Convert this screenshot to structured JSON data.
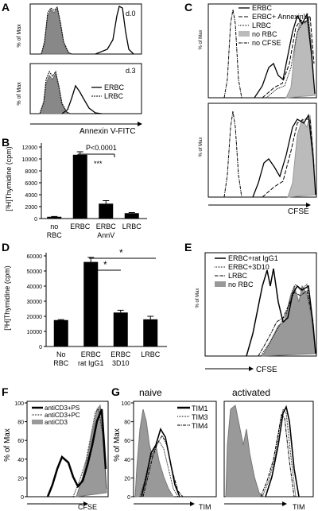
{
  "panels": {
    "A": {
      "letter": "A",
      "top_label": "d.0",
      "bottom_label": "d.3",
      "ylabel": "% of Max",
      "xlabel": "Annexin V-FITC",
      "legend": [
        "ERBC",
        "LRBC"
      ],
      "ticks_x": [
        "10⁰",
        "10¹",
        "10²",
        "10³",
        "10⁴"
      ],
      "ticks_y": [
        "0",
        "20",
        "40",
        "60",
        "80",
        "100"
      ]
    },
    "B": {
      "letter": "B",
      "ylabel": "[³H]Thymidine (cpm)",
      "pvalue": "P<0.0001",
      "stars": "***",
      "ticks_y": [
        "0",
        "2000",
        "4000",
        "6000",
        "8000",
        "10000",
        "12000"
      ],
      "chart_data": {
        "type": "bar",
        "categories": [
          "no RBC",
          "ERBC",
          "ERBC AnnV",
          "LRBC"
        ],
        "values": [
          300,
          10700,
          2500,
          900
        ],
        "errors": [
          50,
          500,
          500,
          100
        ],
        "ylim": [
          0,
          12000
        ]
      }
    },
    "C": {
      "letter": "C",
      "ylabel": "% of Max",
      "xlabel": "CFSE",
      "legend": [
        "ERBC",
        "ERBC+ AnnexinV",
        "LRBC",
        "no RBC",
        "no CFSE"
      ]
    },
    "D": {
      "letter": "D",
      "ylabel": "[³H]Thymidine (cpm)",
      "stars": [
        "*",
        "*"
      ],
      "ticks_y": [
        "0",
        "10000",
        "20000",
        "30000",
        "40000",
        "50000",
        "60000"
      ],
      "chart_data": {
        "type": "bar",
        "categories": [
          "No RBC",
          "ERBC rat IgG1",
          "ERBC 3D10",
          "LRBC"
        ],
        "values": [
          17500,
          56000,
          22500,
          18000
        ],
        "errors": [
          300,
          3000,
          1500,
          2000
        ],
        "ylim": [
          0,
          60000
        ]
      }
    },
    "E": {
      "letter": "E",
      "ylabel": "% of Max",
      "xlabel": "CFSE",
      "legend": [
        "ERBC+rat IgG1",
        "ERBC+3D10",
        "LRBC",
        "no RBC"
      ]
    },
    "F": {
      "letter": "F",
      "ylabel": "% of Max",
      "xlabel": "CFSE",
      "legend": [
        "antiCD3+PS",
        "antiCD3+PC",
        "antiCD3"
      ],
      "ticks_y": [
        "0",
        "20",
        "40",
        "60",
        "80",
        "100"
      ]
    },
    "G": {
      "letter": "G",
      "naive": "naive",
      "activated": "activated",
      "ylabel": "% of Max",
      "xlabel": "TIM",
      "legend": [
        "TIM1",
        "TIM3",
        "TIM4"
      ],
      "ticks_y": [
        "0",
        "20",
        "40",
        "60",
        "80",
        "100"
      ]
    }
  }
}
